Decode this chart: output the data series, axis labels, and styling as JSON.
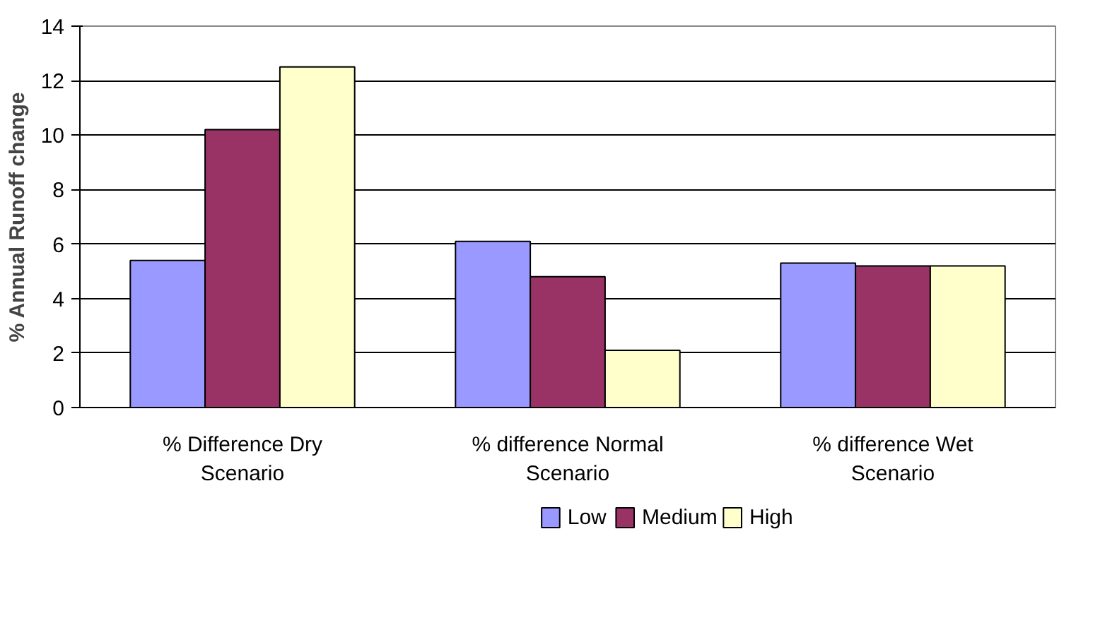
{
  "chart_data": {
    "type": "bar",
    "ylabel": "% Annual Runoff change",
    "categories": [
      "% Difference Dry Scenario",
      "% difference Normal Scenario",
      "% difference Wet Scenario"
    ],
    "series": [
      {
        "name": "Low",
        "color": "#9999ff",
        "values": [
          5.4,
          6.1,
          5.3
        ]
      },
      {
        "name": "Medium",
        "color": "#993366",
        "values": [
          10.2,
          4.8,
          5.2
        ]
      },
      {
        "name": "High",
        "color": "#ffffcc",
        "values": [
          12.5,
          2.1,
          5.2
        ]
      }
    ],
    "ylim": [
      0,
      14
    ],
    "yticks": [
      0,
      2,
      4,
      6,
      8,
      10,
      12,
      14
    ],
    "grid": "y",
    "legend": "bottom"
  }
}
